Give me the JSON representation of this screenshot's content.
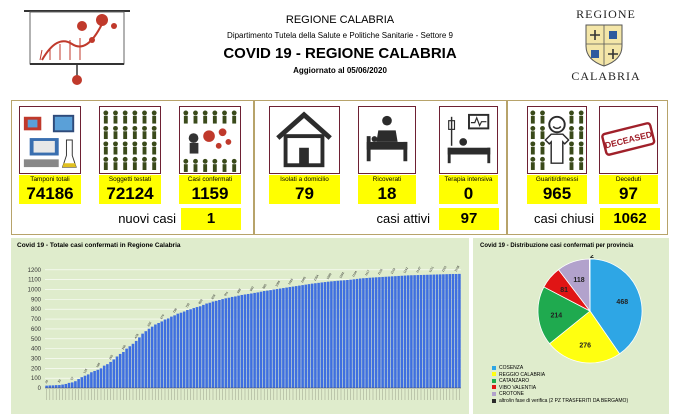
{
  "header": {
    "region": "REGIONE CALABRIA",
    "department": "Dipartimento Tutela della Salute e Politiche Sanitarie - Settore 9",
    "title": "COVID 19 - REGIONE CALABRIA",
    "updated": "Aggiornato al  05/06/2020",
    "brand_top": "REGIONE",
    "brand_bottom": "CALABRIA"
  },
  "stats": [
    {
      "label": "Tamponi totali",
      "value": "74186",
      "icon": "lab-test-icon"
    },
    {
      "label": "Soggetti testati",
      "value": "72124",
      "icon": "crowd-icon"
    },
    {
      "label": "Casi confermati",
      "value": "1159",
      "icon": "virus-cases-icon"
    },
    {
      "label": "Isolati a domicilio",
      "value": "79",
      "icon": "house-icon"
    },
    {
      "label": "Ricoverati",
      "value": "18",
      "icon": "hospital-bed-icon"
    },
    {
      "label": "Terapia intensiva",
      "value": "0",
      "icon": "intensive-care-icon"
    },
    {
      "label": "Guariti/dimessi",
      "value": "965",
      "icon": "recovered-icon"
    },
    {
      "label": "Deceduti",
      "value": "97",
      "icon": "deceased-stamp-icon"
    }
  ],
  "deceased_stamp": "DECEASED",
  "summary": {
    "new_label": "nuovi casi",
    "new_value": "1",
    "active_label": "casi attivi",
    "active_value": "97",
    "closed_label": "casi chiusi",
    "closed_value": "1062"
  },
  "colors": {
    "accent_yellow": "#ffff00",
    "panel_border": "#b7a36a",
    "chart_bg": "#dfeccc",
    "bar_blue": "#3f6fe0",
    "pie": [
      "#2ea6e5",
      "#ffff10",
      "#1faa4f",
      "#e01515",
      "#b2a2cc",
      "#2b2b2b"
    ]
  },
  "chart_data": [
    {
      "type": "bar",
      "title": "Covid 19 - Totale casi confermati in Regione Calabria",
      "xlabel": "",
      "ylabel": "",
      "ylim": [
        0,
        1300
      ],
      "yticks": [
        0,
        100,
        200,
        300,
        400,
        500,
        600,
        700,
        800,
        900,
        1000,
        1100,
        1200
      ],
      "grid": true,
      "values": [
        24,
        26,
        27,
        29,
        30,
        35,
        41,
        52,
        57,
        69,
        91,
        110,
        125,
        138,
        160,
        173,
        185,
        200,
        227,
        242,
        265,
        290,
        320,
        346,
        366,
        400,
        424,
        449,
        478,
        514,
        552,
        577,
        602,
        623,
        645,
        660,
        676,
        696,
        706,
        725,
        738,
        755,
        765,
        777,
        792,
        800,
        812,
        822,
        830,
        844,
        858,
        866,
        878,
        885,
        894,
        903,
        911,
        917,
        925,
        930,
        938,
        945,
        950,
        955,
        960,
        966,
        971,
        978,
        985,
        989,
        994,
        1000,
        1005,
        1010,
        1015,
        1020,
        1026,
        1030,
        1035,
        1040,
        1045,
        1050,
        1055,
        1060,
        1064,
        1068,
        1072,
        1076,
        1080,
        1083,
        1086,
        1089,
        1092,
        1094,
        1097,
        1100,
        1104,
        1108,
        1112,
        1115,
        1117,
        1120,
        1122,
        1124,
        1126,
        1128,
        1130,
        1132,
        1134,
        1136,
        1138,
        1140,
        1142,
        1144,
        1145,
        1146,
        1147,
        1148,
        1149,
        1150,
        1151,
        1152,
        1153,
        1154,
        1155,
        1156,
        1157,
        1158,
        1158,
        1159
      ]
    },
    {
      "type": "pie",
      "title": "Covid 19 - Distribuzione casi confermati per provincia",
      "slices": [
        {
          "name": "COSENZA",
          "value": 468
        },
        {
          "name": "REGGIO CALABRIA",
          "value": 276
        },
        {
          "name": "CATANZARO",
          "value": 214
        },
        {
          "name": "VIBO VALENTIA",
          "value": 81
        },
        {
          "name": "CROTONE",
          "value": 118
        },
        {
          "name": "altro/in fase di verifica (2 PZ TRASFERITI DA BERGAMO)",
          "value": 2
        }
      ],
      "legend_position": "bottom-left"
    }
  ]
}
